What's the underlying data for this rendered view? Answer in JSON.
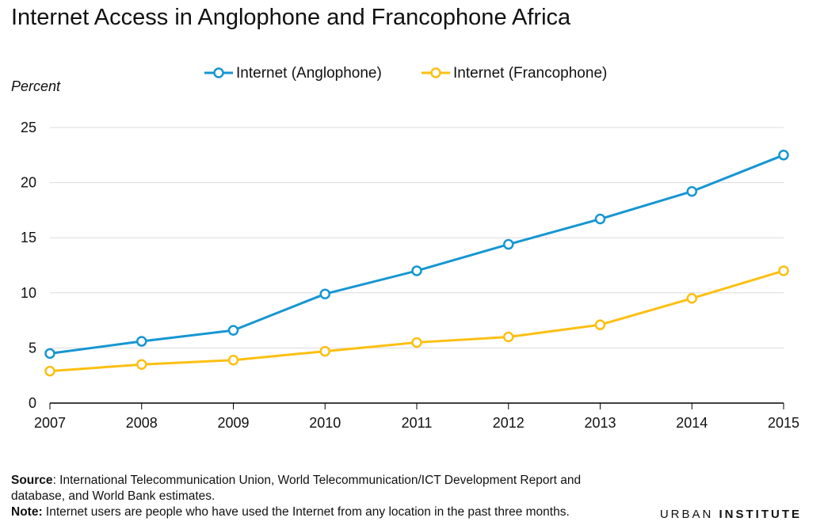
{
  "title": "Internet Access in Anglophone and Francophone Africa",
  "chart_data": {
    "type": "line",
    "x": [
      2007,
      2008,
      2009,
      2010,
      2011,
      2012,
      2013,
      2014,
      2015
    ],
    "series": [
      {
        "name": "Internet (Anglophone)",
        "color": "#1696d2",
        "values": [
          4.5,
          5.6,
          6.6,
          9.9,
          12.0,
          14.4,
          16.7,
          19.2,
          22.5
        ]
      },
      {
        "name": "Internet (Francophone)",
        "color": "#fdbf11",
        "values": [
          2.9,
          3.5,
          3.9,
          4.7,
          5.5,
          6.0,
          7.1,
          9.5,
          12.0
        ]
      }
    ],
    "ylabel": "Percent",
    "ylim": [
      0,
      25
    ],
    "yticks": [
      0,
      5,
      10,
      15,
      20,
      25
    ],
    "xlim": [
      2007,
      2015
    ],
    "grid": true,
    "legend": "top-center"
  },
  "footer": {
    "source_label": "Source",
    "source_text": ": International Telecommunication Union, World Telecommunication/ICT Development Report and database, and World Bank estimates.",
    "note_label": "Note:",
    "note_text": " Internet users are people who have used the Internet from any location in the past three months."
  },
  "logo": {
    "part1": "URBAN",
    "part2": "INSTITUTE"
  }
}
